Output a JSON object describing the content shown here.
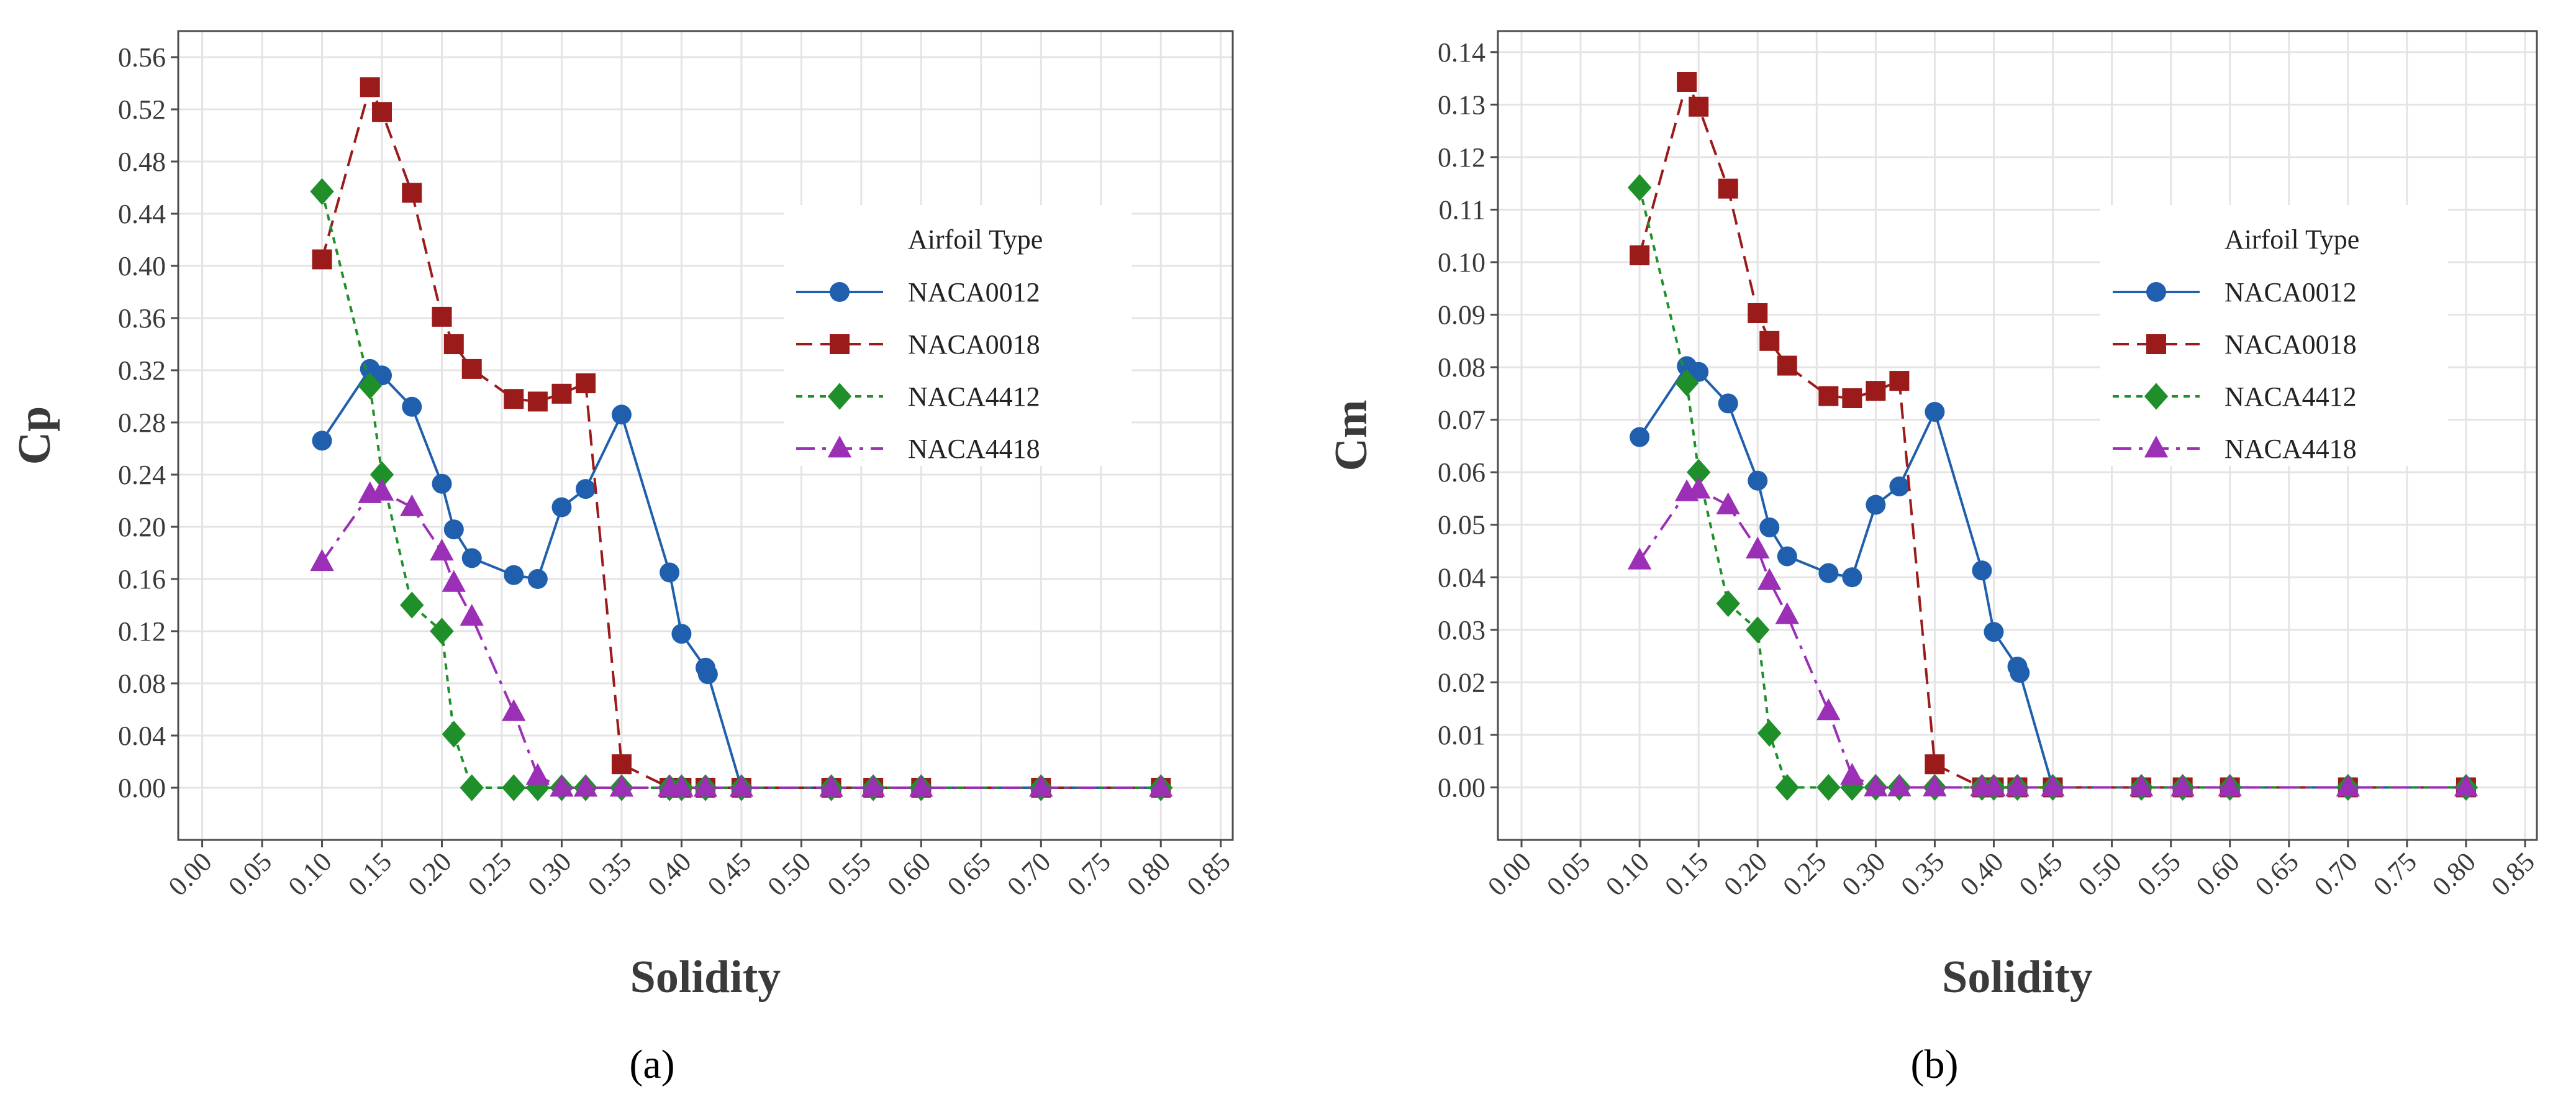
{
  "panel_labels": [
    "(a)",
    "(b)"
  ],
  "chart_data": [
    {
      "type": "line",
      "panel": "(a)",
      "title": "",
      "xlabel": "Solidity",
      "ylabel": "Cp",
      "xlim": [
        -0.02,
        0.86
      ],
      "ylim": [
        -0.04,
        0.58
      ],
      "x_ticks": [
        0.0,
        0.05,
        0.1,
        0.15,
        0.2,
        0.25,
        0.3,
        0.35,
        0.4,
        0.45,
        0.5,
        0.55,
        0.6,
        0.65,
        0.7,
        0.75,
        0.8,
        0.85
      ],
      "x_tick_labels": [
        "0.00",
        "0.05",
        "0.10",
        "0.15",
        "0.20",
        "0.25",
        "0.30",
        "0.35",
        "0.40",
        "0.45",
        "0.50",
        "0.55",
        "0.60",
        "0.65",
        "0.70",
        "0.75",
        "0.80",
        "0.85"
      ],
      "y_ticks": [
        0.0,
        0.04,
        0.08,
        0.12,
        0.16,
        0.2,
        0.24,
        0.28,
        0.32,
        0.36,
        0.4,
        0.44,
        0.48,
        0.52,
        0.56
      ],
      "y_tick_labels": [
        "0.00",
        "0.04",
        "0.08",
        "0.12",
        "0.16",
        "0.20",
        "0.24",
        "0.28",
        "0.32",
        "0.36",
        "0.40",
        "0.44",
        "0.48",
        "0.52",
        "0.56"
      ],
      "grid": true,
      "legend": {
        "title": "Airfoil Type",
        "position": "right-center"
      },
      "series": [
        {
          "name": "NACA0012",
          "color": "#1f5fad",
          "marker": "circle",
          "dash": "solid",
          "x": [
            0.1,
            0.14,
            0.15,
            0.175,
            0.2,
            0.21,
            0.225,
            0.26,
            0.28,
            0.3,
            0.32,
            0.35,
            0.39,
            0.4,
            0.42,
            0.422,
            0.45,
            0.525,
            0.56,
            0.6,
            0.7,
            0.8
          ],
          "y": [
            0.266,
            0.321,
            0.316,
            0.292,
            0.233,
            0.198,
            0.176,
            0.163,
            0.16,
            0.215,
            0.229,
            0.286,
            0.165,
            0.118,
            0.092,
            0.087,
            0.0,
            0.0,
            0.0,
            0.0,
            0.0,
            0.0
          ]
        },
        {
          "name": "NACA0018",
          "color": "#9b1b1b",
          "marker": "square",
          "dash": "dashed",
          "x": [
            0.1,
            0.14,
            0.15,
            0.175,
            0.2,
            0.21,
            0.225,
            0.26,
            0.28,
            0.3,
            0.32,
            0.35,
            0.39,
            0.4,
            0.42,
            0.45,
            0.525,
            0.56,
            0.6,
            0.7,
            0.8
          ],
          "y": [
            0.405,
            0.537,
            0.518,
            0.456,
            0.361,
            0.34,
            0.321,
            0.298,
            0.296,
            0.302,
            0.31,
            0.018,
            0.0,
            0.0,
            0.0,
            0.0,
            0.0,
            0.0,
            0.0,
            0.0,
            0.0
          ]
        },
        {
          "name": "NACA4412",
          "color": "#1f8f2a",
          "marker": "diamond",
          "dash": "dotted",
          "x": [
            0.1,
            0.14,
            0.15,
            0.175,
            0.2,
            0.21,
            0.225,
            0.26,
            0.28,
            0.3,
            0.32,
            0.35,
            0.39,
            0.4,
            0.42,
            0.45,
            0.525,
            0.56,
            0.6,
            0.7,
            0.8
          ],
          "y": [
            0.457,
            0.308,
            0.24,
            0.14,
            0.12,
            0.041,
            0.0,
            0.0,
            0.0,
            0.0,
            0.0,
            0.0,
            0.0,
            0.0,
            0.0,
            0.0,
            0.0,
            0.0,
            0.0,
            0.0,
            0.0
          ]
        },
        {
          "name": "NACA4418",
          "color": "#9b2fb5",
          "marker": "triangle",
          "dash": "dashdot",
          "x": [
            0.1,
            0.14,
            0.15,
            0.175,
            0.2,
            0.21,
            0.225,
            0.26,
            0.28,
            0.3,
            0.32,
            0.35,
            0.39,
            0.4,
            0.42,
            0.45,
            0.525,
            0.56,
            0.6,
            0.7,
            0.8
          ],
          "y": [
            0.173,
            0.225,
            0.227,
            0.215,
            0.181,
            0.157,
            0.131,
            0.058,
            0.009,
            0.0,
            0.0,
            0.0,
            0.0,
            0.0,
            0.0,
            0.0,
            0.0,
            0.0,
            0.0,
            0.0,
            0.0
          ]
        }
      ]
    },
    {
      "type": "line",
      "panel": "(b)",
      "title": "",
      "xlabel": "Solidity",
      "ylabel": "Cm",
      "xlim": [
        -0.02,
        0.86
      ],
      "ylim": [
        -0.01,
        0.144
      ],
      "x_ticks": [
        0.0,
        0.05,
        0.1,
        0.15,
        0.2,
        0.25,
        0.3,
        0.35,
        0.4,
        0.45,
        0.5,
        0.55,
        0.6,
        0.65,
        0.7,
        0.75,
        0.8,
        0.85
      ],
      "x_tick_labels": [
        "0.00",
        "0.05",
        "0.10",
        "0.15",
        "0.20",
        "0.25",
        "0.30",
        "0.35",
        "0.40",
        "0.45",
        "0.50",
        "0.55",
        "0.60",
        "0.65",
        "0.70",
        "0.75",
        "0.80",
        "0.85"
      ],
      "y_ticks": [
        0.0,
        0.01,
        0.02,
        0.03,
        0.04,
        0.05,
        0.06,
        0.07,
        0.08,
        0.09,
        0.1,
        0.11,
        0.12,
        0.13,
        0.14
      ],
      "y_tick_labels": [
        "0.00",
        "0.01",
        "0.02",
        "0.03",
        "0.04",
        "0.05",
        "0.06",
        "0.07",
        "0.08",
        "0.09",
        "0.10",
        "0.11",
        "0.12",
        "0.13",
        "0.14"
      ],
      "grid": true,
      "legend": {
        "title": "Airfoil Type",
        "position": "right-center"
      },
      "series": [
        {
          "name": "NACA0012",
          "color": "#1f5fad",
          "marker": "circle",
          "dash": "solid",
          "x": [
            0.1,
            0.14,
            0.15,
            0.175,
            0.2,
            0.21,
            0.225,
            0.26,
            0.28,
            0.3,
            0.32,
            0.35,
            0.39,
            0.4,
            0.42,
            0.422,
            0.45,
            0.525,
            0.56,
            0.6,
            0.7,
            0.8
          ],
          "y": [
            0.0667,
            0.0802,
            0.0791,
            0.0731,
            0.0584,
            0.0495,
            0.044,
            0.0408,
            0.04,
            0.0538,
            0.0573,
            0.0715,
            0.0413,
            0.0296,
            0.023,
            0.0218,
            0.0,
            0.0,
            0.0,
            0.0,
            0.0,
            0.0
          ]
        },
        {
          "name": "NACA0018",
          "color": "#9b1b1b",
          "marker": "square",
          "dash": "dashed",
          "x": [
            0.1,
            0.14,
            0.15,
            0.175,
            0.2,
            0.21,
            0.225,
            0.26,
            0.28,
            0.3,
            0.32,
            0.35,
            0.39,
            0.4,
            0.42,
            0.45,
            0.525,
            0.56,
            0.6,
            0.7,
            0.8
          ],
          "y": [
            0.1013,
            0.1343,
            0.1296,
            0.114,
            0.0903,
            0.085,
            0.0803,
            0.0745,
            0.0741,
            0.0755,
            0.0774,
            0.0044,
            0.0,
            0.0,
            0.0,
            0.0,
            0.0,
            0.0,
            0.0,
            0.0,
            0.0
          ]
        },
        {
          "name": "NACA4412",
          "color": "#1f8f2a",
          "marker": "diamond",
          "dash": "dotted",
          "x": [
            0.1,
            0.14,
            0.15,
            0.175,
            0.2,
            0.21,
            0.225,
            0.26,
            0.28,
            0.3,
            0.32,
            0.35,
            0.39,
            0.4,
            0.42,
            0.45,
            0.525,
            0.56,
            0.6,
            0.7,
            0.8
          ],
          "y": [
            0.1142,
            0.077,
            0.06,
            0.035,
            0.03,
            0.0103,
            0.0,
            0.0,
            0.0,
            0.0,
            0.0,
            0.0,
            0.0,
            0.0,
            0.0,
            0.0,
            0.0,
            0.0,
            0.0,
            0.0,
            0.0
          ]
        },
        {
          "name": "NACA4418",
          "color": "#9b2fb5",
          "marker": "triangle",
          "dash": "dashdot",
          "x": [
            0.1,
            0.14,
            0.15,
            0.175,
            0.2,
            0.21,
            0.225,
            0.26,
            0.28,
            0.3,
            0.32,
            0.35,
            0.39,
            0.4,
            0.42,
            0.45,
            0.525,
            0.56,
            0.6,
            0.7,
            0.8
          ],
          "y": [
            0.0432,
            0.0562,
            0.0567,
            0.0537,
            0.0453,
            0.0393,
            0.0328,
            0.0145,
            0.0022,
            0.0,
            0.0,
            0.0,
            0.0,
            0.0,
            0.0,
            0.0,
            0.0,
            0.0,
            0.0,
            0.0,
            0.0
          ]
        }
      ]
    }
  ]
}
